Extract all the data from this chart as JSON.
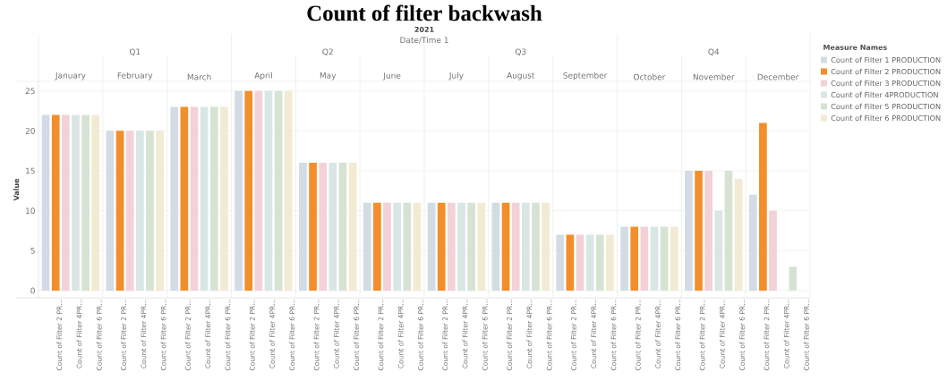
{
  "chart_data": {
    "type": "bar",
    "title": "Count of filter backwash",
    "ylabel": "Value",
    "legend_title": "Measure Names",
    "categories": [
      "January",
      "February",
      "March",
      "April",
      "May",
      "June",
      "July",
      "August",
      "September",
      "October",
      "November",
      "December"
    ],
    "series": [
      {
        "name": "Count of Filter 1 PRODUCTION",
        "color": "#d3dbe4",
        "values": [
          22,
          20,
          23,
          25,
          16,
          11,
          11,
          11,
          7,
          8,
          15,
          12
        ]
      },
      {
        "name": "Count of Filter 2 PRODUCTION",
        "color": "#f28e2b",
        "values": [
          22,
          20,
          23,
          25,
          16,
          11,
          11,
          11,
          7,
          8,
          15,
          21
        ]
      },
      {
        "name": "Count of Filter 3 PRODUCTION",
        "color": "#f2d2d6",
        "values": [
          22,
          20,
          23,
          25,
          16,
          11,
          11,
          11,
          7,
          8,
          15,
          10
        ]
      },
      {
        "name": "Count of Filter 4PRODUCTION",
        "color": "#d9e6e5",
        "values": [
          22,
          20,
          23,
          25,
          16,
          11,
          11,
          11,
          7,
          8,
          10,
          null
        ]
      },
      {
        "name": "Count of Filter 5 PRODUCTION",
        "color": "#d6e3d2",
        "values": [
          22,
          20,
          23,
          25,
          16,
          11,
          11,
          11,
          7,
          8,
          15,
          3
        ]
      },
      {
        "name": "Count of Filter 6 PRODUCTION",
        "color": "#f2ead2",
        "values": [
          22,
          20,
          23,
          25,
          16,
          11,
          11,
          11,
          7,
          8,
          14,
          null
        ]
      }
    ],
    "annotations": [
      "Date/Time 1",
      "2021",
      "Q1",
      "Q2",
      "Q3",
      "Q4",
      "Count of Filter 2 PR…",
      "Count of Filter 4PR…",
      "Count of Filter 6 PR…"
    ],
    "ylim": [
      -0.9,
      26.2
    ],
    "yticks": [
      0,
      5,
      10,
      15,
      20,
      25
    ],
    "grid": "y",
    "legend": "top right"
  }
}
